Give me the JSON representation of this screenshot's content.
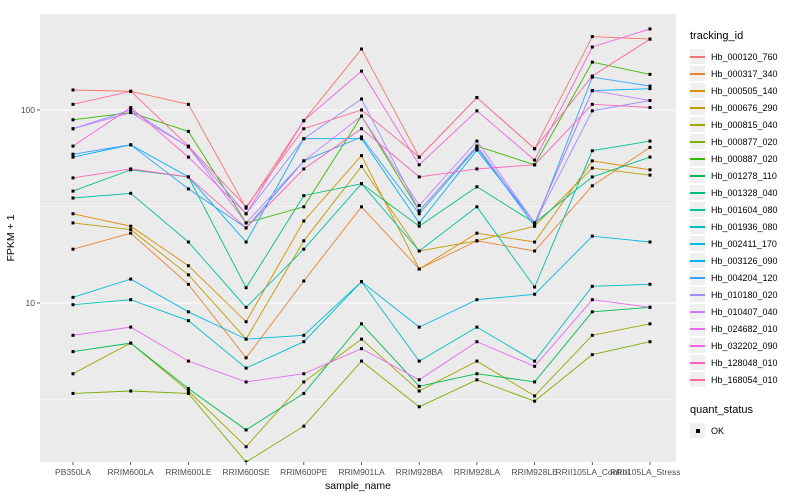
{
  "chart_data": {
    "type": "line",
    "title": "",
    "xlabel": "sample_name",
    "ylabel": "FPKM + 1",
    "y_scale": "log10",
    "y_ticks": [
      10,
      100
    ],
    "y_minor_ticks": [
      3.162,
      31.62,
      316.2
    ],
    "ylim": [
      1.45,
      315
    ],
    "grid": true,
    "panel_bg": "#EBEBEB",
    "grid_color": "#FFFFFF",
    "tick_label_color": "#4d4d4d",
    "marker": {
      "shape": "square",
      "color": "#000000",
      "size": 3
    },
    "legend_position": "right",
    "legend_title": "tracking_id",
    "legend2_title": "quant_status",
    "legend2_items": [
      {
        "label": "OK",
        "marker": "square",
        "color": "#000000"
      }
    ],
    "categories": [
      "PB350LA",
      "RRIM600LA",
      "RRIM600LE",
      "RRIM600SE",
      "RRIM600PE",
      "RRIM901LA",
      "RRIM928BA",
      "RRIM928LA",
      "RRIM928LE",
      "RRII105LA_Control",
      "RRII105LA_Stressed"
    ],
    "series": [
      {
        "name": "Hb_000120_760",
        "color": "#F8766D",
        "values": [
          127,
          125,
          107,
          31,
          88,
          207,
          57,
          116,
          63,
          240,
          233
        ]
      },
      {
        "name": "Hb_000317_340",
        "color": "#EA8331",
        "values": [
          19,
          23,
          12.5,
          5.2,
          13,
          31.5,
          15,
          21,
          18.6,
          40.5,
          64
        ]
      },
      {
        "name": "Hb_000505_140",
        "color": "#D89000",
        "values": [
          29,
          25,
          15.6,
          8.0,
          26.6,
          58,
          15,
          23,
          20.7,
          54.5,
          49
        ]
      },
      {
        "name": "Hb_000676_290",
        "color": "#C09B00",
        "values": [
          26,
          24,
          14,
          6.5,
          21,
          51,
          18.6,
          21,
          25,
          50,
          46
        ]
      },
      {
        "name": "Hb_000815_040",
        "color": "#A3A500",
        "values": [
          4.3,
          6.2,
          3.5,
          1.8,
          3.9,
          6.5,
          3.5,
          5.0,
          3.3,
          6.8,
          7.8
        ]
      },
      {
        "name": "Hb_000877_020",
        "color": "#7CAE00",
        "values": [
          3.4,
          3.5,
          3.4,
          1.5,
          2.3,
          5.0,
          2.9,
          4.0,
          3.1,
          5.4,
          6.3
        ]
      },
      {
        "name": "Hb_000887_020",
        "color": "#39B600",
        "values": [
          89,
          97,
          77.5,
          26,
          31.5,
          93,
          30,
          65,
          52,
          177,
          153
        ]
      },
      {
        "name": "Hb_001278_110",
        "color": "#00BB4E",
        "values": [
          5.6,
          6.2,
          3.6,
          2.2,
          3.4,
          7.8,
          3.7,
          4.3,
          3.9,
          9.0,
          9.5
        ]
      },
      {
        "name": "Hb_001328_040",
        "color": "#00BF7D",
        "values": [
          38,
          49,
          45,
          12,
          36,
          41.5,
          25,
          40,
          26,
          45,
          57
        ]
      },
      {
        "name": "Hb_001604_080",
        "color": "#00C1A3",
        "values": [
          35,
          37,
          20.7,
          9.5,
          19,
          41.5,
          18.6,
          31.5,
          12.1,
          61.5,
          69
        ]
      },
      {
        "name": "Hb_001936_080",
        "color": "#00BFC4",
        "values": [
          9.8,
          10.4,
          8.1,
          4.6,
          6.3,
          12.9,
          5.0,
          7.5,
          5.0,
          12.2,
          12.5
        ]
      },
      {
        "name": "Hb_002411_170",
        "color": "#00BAE0",
        "values": [
          10.7,
          13.3,
          9.0,
          6.5,
          6.8,
          12.9,
          7.5,
          10.4,
          11.1,
          22.2,
          20.7
        ]
      },
      {
        "name": "Hb_003126_090",
        "color": "#00B0F6",
        "values": [
          57,
          66,
          45,
          20.7,
          71,
          71,
          26,
          62,
          26,
          126,
          129
        ]
      },
      {
        "name": "Hb_004204_120",
        "color": "#35A2FF",
        "values": [
          59,
          66,
          39,
          24.5,
          54.5,
          72.5,
          29,
          64,
          25,
          148,
          133
        ]
      },
      {
        "name": "Hb_010180_020",
        "color": "#9590FF",
        "values": [
          80,
          100,
          64.5,
          29,
          71,
          114,
          30,
          65,
          26,
          99,
          112
        ]
      },
      {
        "name": "Hb_010407_040",
        "color": "#C77CFF",
        "values": [
          80,
          97,
          64.5,
          26,
          54.5,
          93,
          32,
          69,
          26,
          126,
          112
        ]
      },
      {
        "name": "Hb_024682_010",
        "color": "#E76BF3",
        "values": [
          6.8,
          7.5,
          5.0,
          3.9,
          4.3,
          5.8,
          4.0,
          6.3,
          4.7,
          10.4,
          9.5
        ]
      },
      {
        "name": "Hb_032202_090",
        "color": "#FA62DB",
        "values": [
          65,
          103,
          57,
          29,
          88,
          159,
          52,
          99,
          55,
          212,
          263
        ]
      },
      {
        "name": "Hb_128048_010",
        "color": "#FF62BC",
        "values": [
          44.5,
          49.5,
          45,
          24.5,
          49.5,
          80,
          45,
          49.5,
          52,
          107,
          103
        ]
      },
      {
        "name": "Hb_168054_010",
        "color": "#FF6A98",
        "values": [
          107,
          125,
          65,
          31.5,
          80,
          100,
          57,
          116,
          63,
          150,
          233
        ]
      }
    ]
  }
}
